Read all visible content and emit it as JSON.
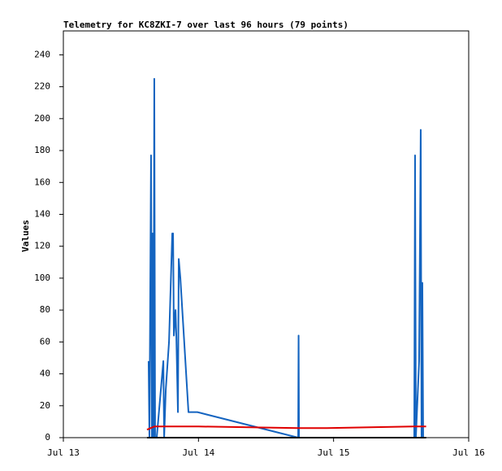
{
  "chart_data": {
    "type": "line",
    "title": "Telemetry for KC8ZKI-7 over last 96 hours (79 points)",
    "ylabel": "Values",
    "xlim": [
      0,
      3
    ],
    "xticks": [
      {
        "value": 0,
        "label": "Jul 13"
      },
      {
        "value": 1,
        "label": "Jul 14"
      },
      {
        "value": 2,
        "label": "Jul 15"
      },
      {
        "value": 3,
        "label": "Jul 16"
      }
    ],
    "ylim": [
      0,
      255
    ],
    "yticks": [
      0,
      20,
      40,
      60,
      80,
      100,
      120,
      140,
      160,
      180,
      200,
      220,
      240
    ],
    "grid": false,
    "series": [
      {
        "color": "#1464c0",
        "x": [
          0.631,
          0.637,
          0.649,
          0.655,
          0.661,
          0.667,
          0.673,
          0.679,
          0.691,
          0.74,
          0.746,
          0.758,
          0.782,
          0.806,
          0.812,
          0.818,
          0.83,
          0.836,
          0.848,
          0.854,
          0.866,
          0.926,
          0.992,
          1.738,
          1.741,
          1.744,
          2.597,
          2.603,
          2.609,
          2.633,
          2.645,
          2.651,
          2.657,
          2.663
        ],
        "values": [
          48,
          0,
          177,
          0,
          128,
          0,
          225,
          0,
          0,
          48,
          0,
          30,
          60,
          128,
          128,
          64,
          80,
          64,
          16,
          112,
          100,
          16,
          16,
          0,
          64,
          0,
          0,
          177,
          0,
          48,
          193,
          0,
          97,
          0
        ]
      },
      {
        "color": "#e00000",
        "x": [
          0.619,
          0.673,
          1.0,
          1.738,
          1.95,
          2.597,
          2.685
        ],
        "values": [
          5,
          7,
          7,
          6,
          6,
          7,
          7
        ]
      },
      {
        "color": "#000000",
        "x": [
          0.619,
          2.685
        ],
        "values": [
          0,
          0
        ]
      }
    ]
  }
}
